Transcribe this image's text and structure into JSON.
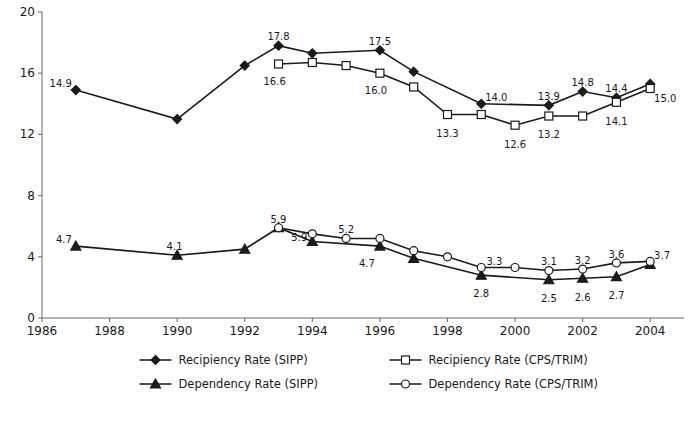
{
  "chart_data": {
    "type": "line",
    "series": [
      {
        "name": "Recipiency Rate (SIPP)",
        "color": "#1a1a1a",
        "marker": "diamond",
        "x": [
          1987,
          1990,
          1992,
          1993,
          1994,
          1996,
          1997,
          1999,
          2001,
          2002,
          2003,
          2004
        ],
        "values": [
          14.9,
          13.0,
          16.5,
          17.8,
          17.3,
          17.5,
          16.1,
          14.0,
          13.9,
          14.8,
          14.4,
          15.3
        ]
      },
      {
        "name": "Recipiency Rate (CPS/TRIM)",
        "color": "#1a1a1a",
        "marker": "square-open",
        "x": [
          1993,
          1994,
          1995,
          1996,
          1997,
          1998,
          1999,
          2000,
          2001,
          2002,
          2003,
          2004
        ],
        "values": [
          16.6,
          16.7,
          16.5,
          16.0,
          15.1,
          13.3,
          13.3,
          12.6,
          13.2,
          13.2,
          14.1,
          15.0
        ]
      },
      {
        "name": "Dependency Rate (SIPP)",
        "color": "#1a1a1a",
        "marker": "triangle",
        "x": [
          1987,
          1990,
          1992,
          1993,
          1994,
          1996,
          1997,
          1999,
          2001,
          2002,
          2003,
          2004
        ],
        "values": [
          4.7,
          4.1,
          4.5,
          5.9,
          5.0,
          4.7,
          3.9,
          2.8,
          2.5,
          2.6,
          2.7,
          3.5
        ]
      },
      {
        "name": "Dependency Rate (CPS/TRIM)",
        "color": "#1a1a1a",
        "marker": "circle-open",
        "x": [
          1993,
          1994,
          1995,
          1996,
          1997,
          1998,
          1999,
          2000,
          2001,
          2002,
          2003,
          2004
        ],
        "values": [
          5.9,
          5.5,
          5.2,
          5.2,
          4.4,
          4.0,
          3.3,
          3.3,
          3.1,
          3.2,
          3.6,
          3.7
        ]
      }
    ],
    "annotations": [
      {
        "text": "14.9",
        "x": 1987,
        "y": 14.9
      },
      {
        "text": "17.8",
        "x": 1993,
        "y": 17.8
      },
      {
        "text": "17.5",
        "x": 1996,
        "y": 17.5
      },
      {
        "text": "14.0",
        "x": 1999,
        "y": 14.0
      },
      {
        "text": "13.9",
        "x": 2001,
        "y": 13.9
      },
      {
        "text": "14.8",
        "x": 2002,
        "y": 14.8
      },
      {
        "text": "14.4",
        "x": 2003,
        "y": 14.4
      },
      {
        "text": "16.6",
        "x": 1993,
        "y": 16.6
      },
      {
        "text": "16.0",
        "x": 1996,
        "y": 16.0
      },
      {
        "text": "13.3",
        "x": 1998,
        "y": 13.3
      },
      {
        "text": "12.6",
        "x": 2000,
        "y": 12.6
      },
      {
        "text": "13.2",
        "x": 2001,
        "y": 13.2
      },
      {
        "text": "14.1",
        "x": 2003,
        "y": 14.1
      },
      {
        "text": "15.0",
        "x": 2004,
        "y": 15.0
      },
      {
        "text": "4.7",
        "x": 1987,
        "y": 4.7
      },
      {
        "text": "4.1",
        "x": 1990,
        "y": 4.1
      },
      {
        "text": "5.9",
        "x": 1993,
        "y": 5.9
      },
      {
        "text": "4.7",
        "x": 1996,
        "y": 4.7
      },
      {
        "text": "2.8",
        "x": 1999,
        "y": 2.8
      },
      {
        "text": "2.5",
        "x": 2001,
        "y": 2.5
      },
      {
        "text": "2.6",
        "x": 2002,
        "y": 2.6
      },
      {
        "text": "2.7",
        "x": 2003,
        "y": 2.7
      },
      {
        "text": "5.9",
        "x": 1993,
        "y": 5.9
      },
      {
        "text": "5.2",
        "x": 1995,
        "y": 5.2
      },
      {
        "text": "3.3",
        "x": 1999,
        "y": 3.3
      },
      {
        "text": "3.1",
        "x": 2001,
        "y": 3.1
      },
      {
        "text": "3.2",
        "x": 2002,
        "y": 3.2
      },
      {
        "text": "3.6",
        "x": 2003,
        "y": 3.6
      },
      {
        "text": "3.7",
        "x": 2004,
        "y": 3.7
      }
    ],
    "xlim": [
      1986,
      2005
    ],
    "ylim": [
      0,
      20
    ],
    "xticks": [
      1986,
      1988,
      1990,
      1992,
      1994,
      1996,
      1998,
      2000,
      2002,
      2004
    ],
    "yticks": [
      0,
      4,
      8,
      12,
      16,
      20
    ],
    "grid": false,
    "legend": "bottom"
  }
}
